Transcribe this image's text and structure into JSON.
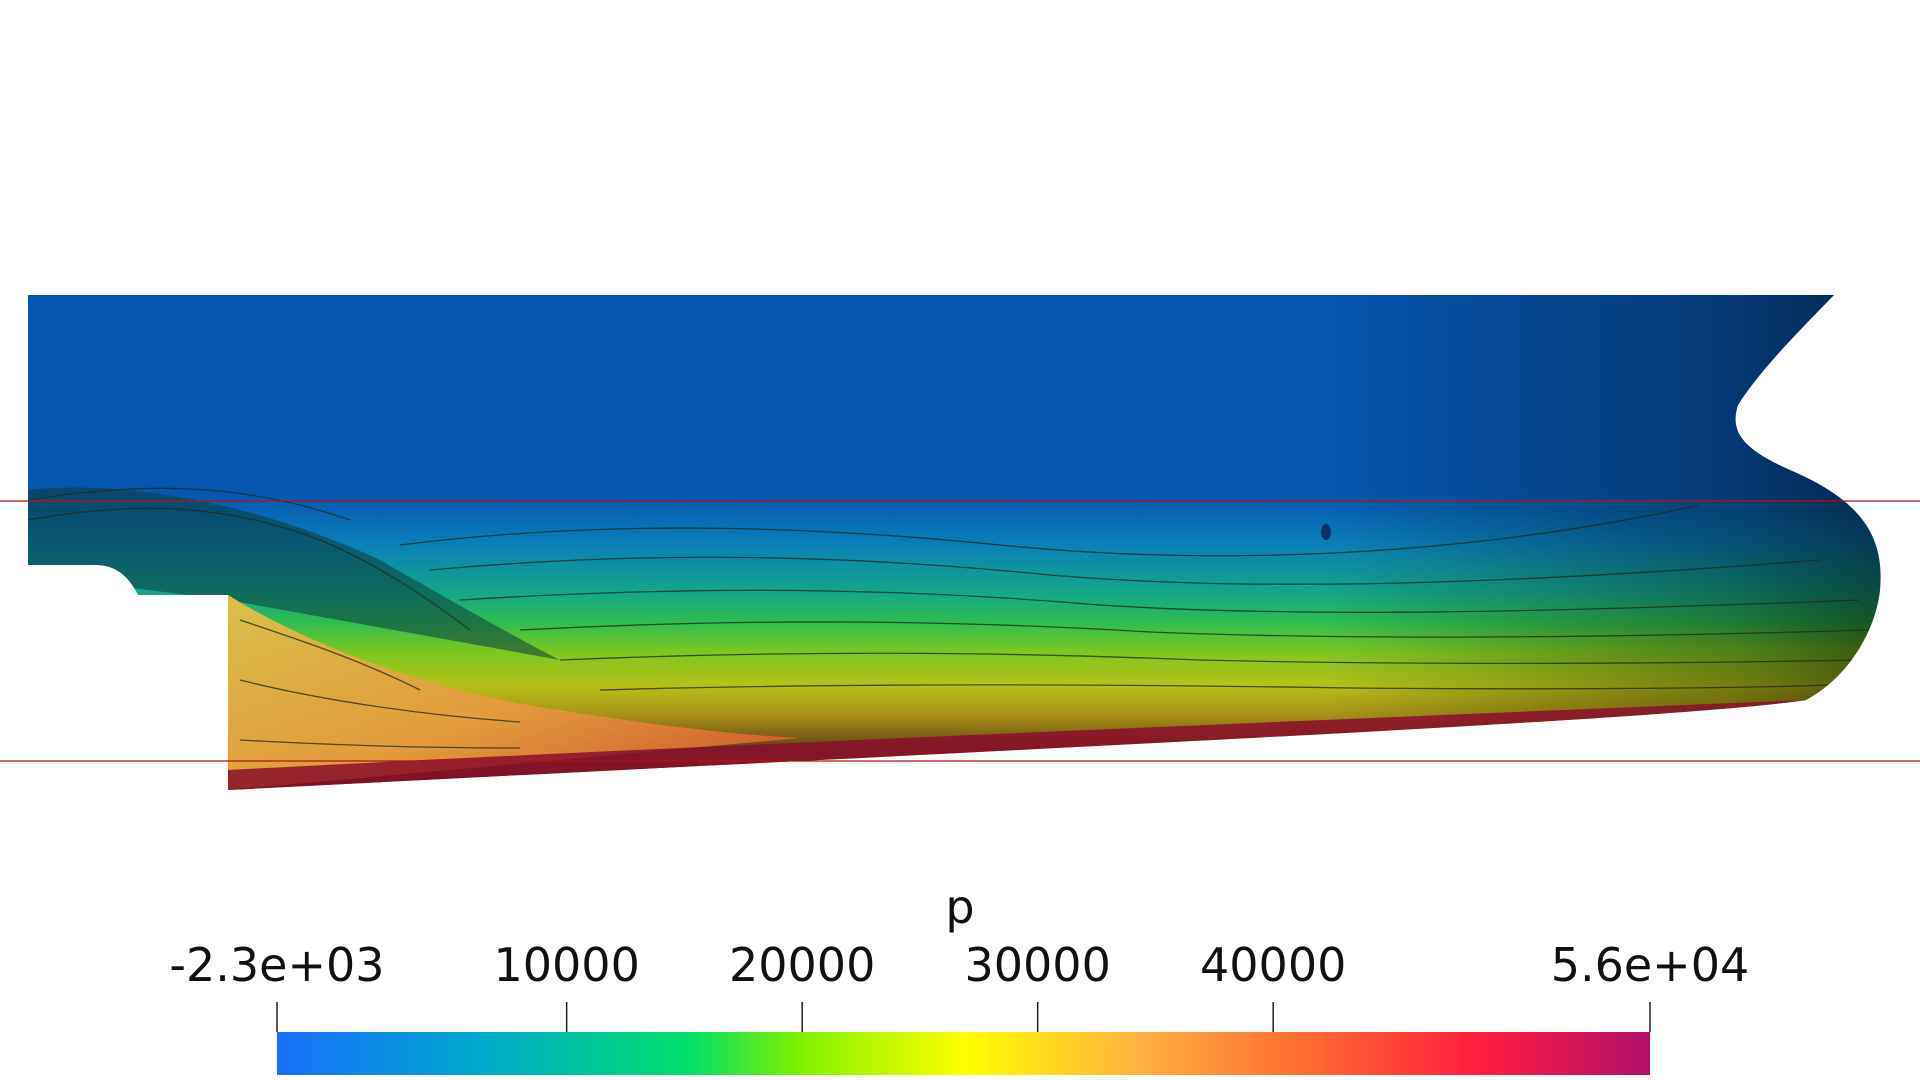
{
  "scalar_bar": {
    "title": "p",
    "ticks": [
      {
        "label": "-2.3e+03",
        "value": -2300
      },
      {
        "label": "10000",
        "value": 10000
      },
      {
        "label": "20000",
        "value": 20000
      },
      {
        "label": "30000",
        "value": 30000
      },
      {
        "label": "40000",
        "value": 40000
      },
      {
        "label": "5.6e+04",
        "value": 56000
      }
    ],
    "range": [
      -2300,
      56000
    ],
    "colormap": [
      "#1a6fff",
      "#00aacc",
      "#00e06a",
      "#7ff000",
      "#ffff00",
      "#ffb040",
      "#ff6a30",
      "#ff1a40",
      "#b0106a"
    ]
  },
  "colors": {
    "hull_upper": "#0756b0",
    "hull_dark": "#07326b",
    "reference_line": "#b01414"
  }
}
